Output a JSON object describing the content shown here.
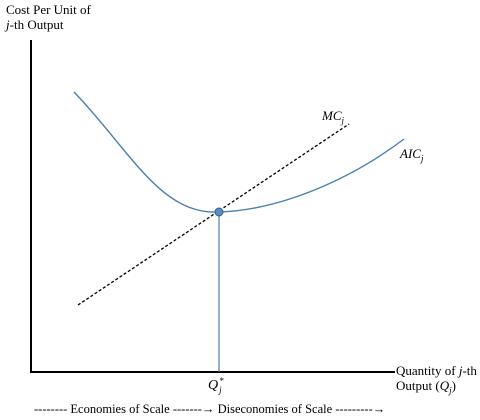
{
  "axes": {
    "y_label_line1": "Cost Per Unit of",
    "y_label_line2_italic": "j",
    "y_label_line2_rest": "-th Output",
    "x_label_line1_pre": "Quantity of ",
    "x_label_line1_italic": "j",
    "x_label_line1_post": "-th",
    "x_label_line2_pre": "Output (",
    "x_label_line2_sym": "Q",
    "x_label_line2_sub": "j",
    "x_label_line2_post": ")"
  },
  "curves": {
    "mc_main": "MC",
    "mc_sub": "j",
    "aic_main": "AIC",
    "aic_sub": "j",
    "curve_color": "#4a7fb0",
    "mc_color": "#000000",
    "point_color": "#5b8ec4"
  },
  "marker": {
    "q_main": "Q",
    "q_sup": "*",
    "q_sub": "j"
  },
  "footer": {
    "scale_text": "-------- Economies of Scale -------→ Diseconomies of Scale ---------→"
  }
}
